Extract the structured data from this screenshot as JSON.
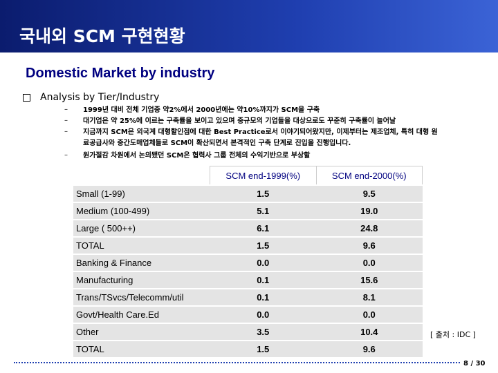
{
  "header": {
    "title": "국내외 SCM 구현현황"
  },
  "subtitle": "Domestic Market by industry",
  "section": {
    "heading": "Analysis by Tier/Industry",
    "items": [
      "1999년 대비 전체 기업중 약2%에서 2000년에는 약10%까지가 SCM을 구축",
      "대기업은 약 25%에 이르는 구축률을 보이고 있으며  중규모의 기업들을 대상으로도 꾸준히 구축률이 늘어날",
      "지금까지 SCM은 외국계 대형할인점에 대한 Best Practice로서 이야기되어왔지만, 이제부터는 제조업체, 특히 대형 원료공급사와 중간도매업체들로 SCM이 확산되면서 본격적인 구축 단계로 진입을 진행입니다.",
      "원가절감 차원에서 논의됐던 SCM은 협력사 그룹 전체의 수익기반으로 부상할"
    ]
  },
  "table": {
    "columns": [
      "SCM end-1999(%)",
      "SCM  end-2000(%)"
    ],
    "rows": [
      [
        "Small (1-99)",
        "1.5",
        "9.5"
      ],
      [
        "Medium (100-499)",
        "5.1",
        "19.0"
      ],
      [
        "Large ( 500++)",
        "6.1",
        "24.8"
      ],
      [
        "TOTAL",
        "1.5",
        "9.6"
      ],
      [
        "Banking & Finance",
        "0.0",
        "0.0"
      ],
      [
        "Manufacturing",
        "0.1",
        "15.6"
      ],
      [
        "Trans/TSvcs/Telecomm/util",
        "0.1",
        "8.1"
      ],
      [
        "Govt/Health Care.Ed",
        "0.0",
        "0.0"
      ],
      [
        "Other",
        "3.5",
        "10.4"
      ],
      [
        "TOTAL",
        "1.5",
        "9.6"
      ]
    ]
  },
  "source": "[ 출처 : IDC ]",
  "page": "8 / 30"
}
